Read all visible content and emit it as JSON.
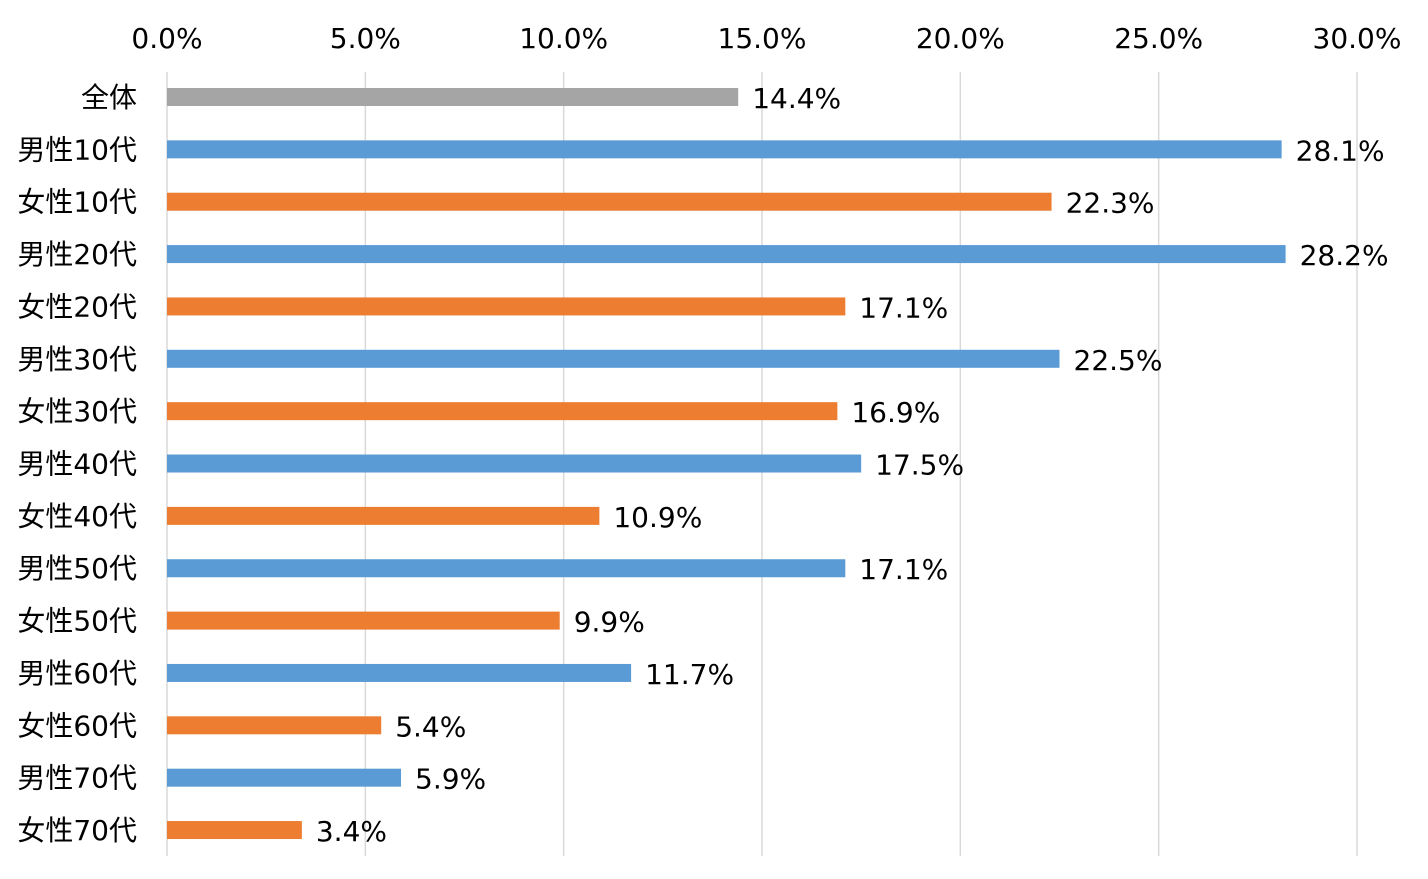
{
  "chart_data": {
    "type": "bar",
    "orientation": "horizontal",
    "categories": [
      "全体",
      "男性10代",
      "女性10代",
      "男性20代",
      "女性20代",
      "男性30代",
      "女性30代",
      "男性40代",
      "女性40代",
      "男性50代",
      "女性50代",
      "男性60代",
      "女性60代",
      "男性70代",
      "女性70代"
    ],
    "values": [
      14.4,
      28.1,
      22.3,
      28.2,
      17.1,
      22.5,
      16.9,
      17.5,
      10.9,
      17.1,
      9.9,
      11.7,
      5.4,
      5.9,
      3.4
    ],
    "value_labels": [
      "14.4%",
      "28.1%",
      "22.3%",
      "28.2%",
      "17.1%",
      "22.5%",
      "16.9%",
      "17.5%",
      "10.9%",
      "17.1%",
      "9.9%",
      "11.7%",
      "5.4%",
      "5.9%",
      "3.4%"
    ],
    "bar_groups": [
      "total",
      "male",
      "female",
      "male",
      "female",
      "male",
      "female",
      "male",
      "female",
      "male",
      "female",
      "male",
      "female",
      "male",
      "female"
    ],
    "xlim": [
      0,
      30
    ],
    "x_ticks": [
      0,
      5,
      10,
      15,
      20,
      25,
      30
    ],
    "x_tick_labels": [
      "0.0%",
      "5.0%",
      "10.0%",
      "15.0%",
      "20.0%",
      "25.0%",
      "30.0%"
    ],
    "x_axis_position": "top",
    "grid": true,
    "legend": "none",
    "title": "",
    "xlabel": "",
    "ylabel": ""
  },
  "colors": {
    "total": "#a5a5a5",
    "male": "#5b9bd5",
    "female": "#ed7d31",
    "grid": "#d9d9d9",
    "text": "#000000"
  }
}
